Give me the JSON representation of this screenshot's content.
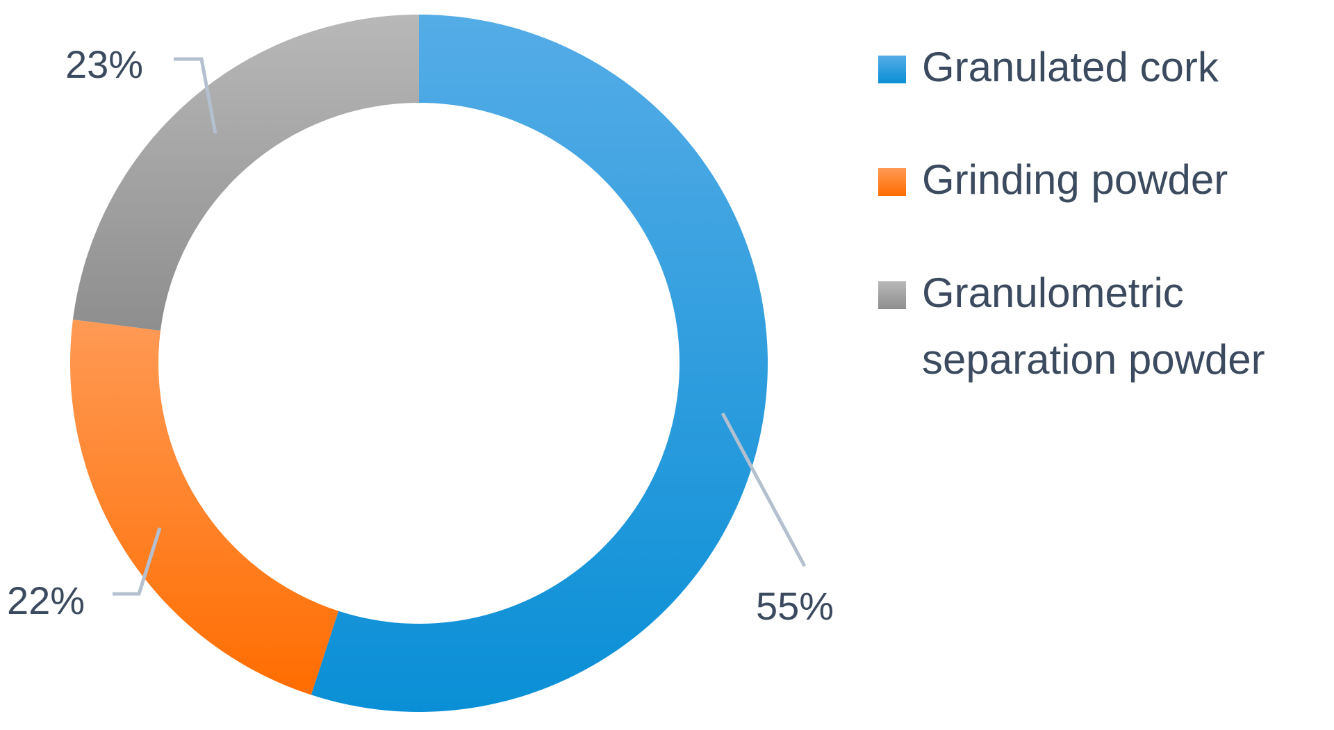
{
  "chart_data": {
    "type": "pie",
    "variant": "donut",
    "title": "",
    "categories": [
      "Granulated cork",
      "Grinding powder",
      "Granulometric separation powder"
    ],
    "values": [
      55,
      22,
      23
    ],
    "unit": "%",
    "data_labels": [
      "55%",
      "22%",
      "23%"
    ],
    "legend": {
      "placement": "right",
      "entries": [
        {
          "label_lines": [
            "Granulated cork"
          ]
        },
        {
          "label_lines": [
            "Grinding powder"
          ]
        },
        {
          "label_lines": [
            "Granulometric",
            "separation powder"
          ]
        }
      ]
    },
    "colors": [
      {
        "top": "#55ace6",
        "bottom": "#0a8fd6"
      },
      {
        "top": "#ff9a55",
        "bottom": "#ff6d00"
      },
      {
        "top": "#b8b8b8",
        "bottom": "#8e8e8e"
      }
    ],
    "leader_line_color": "#b4c0cf",
    "start_angle_deg": 0,
    "direction": "clockwise"
  }
}
